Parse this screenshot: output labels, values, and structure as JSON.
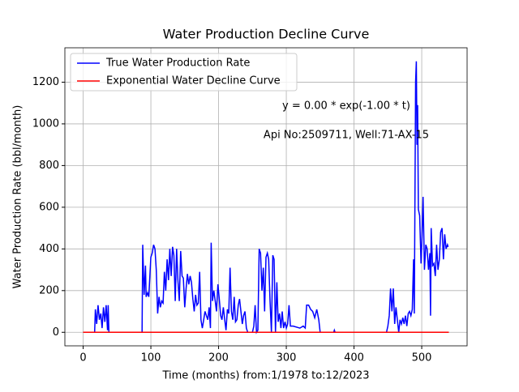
{
  "chart_data": {
    "type": "line",
    "title": "Water Production Decline Curve",
    "xlabel": "Time (months) from:1/1978 to:12/2023",
    "ylabel": "Water Production Rate (bbl/month)",
    "annotations": [
      "y = 0.00 * exp(-1.00 * t)",
      "Api No:2509711, Well:71-AX-15"
    ],
    "xlim": [
      -27,
      567
    ],
    "ylim": [
      -65,
      1365
    ],
    "xticks": [
      0,
      100,
      200,
      300,
      400,
      500
    ],
    "yticks": [
      0,
      200,
      400,
      600,
      800,
      1000,
      1200
    ],
    "grid": true,
    "legend": "upper left",
    "series": [
      {
        "name": "True Water Production Rate",
        "color": "#0000ff",
        "x": [
          0,
          15,
          17,
          18,
          20,
          22,
          24,
          26,
          28,
          30,
          32,
          34,
          36,
          37,
          38,
          87,
          88,
          90,
          92,
          93,
          95,
          97,
          100,
          102,
          104,
          106,
          108,
          110,
          112,
          114,
          116,
          118,
          120,
          122,
          124,
          126,
          128,
          130,
          132,
          134,
          136,
          138,
          140,
          142,
          144,
          146,
          148,
          150,
          152,
          154,
          156,
          158,
          160,
          162,
          164,
          166,
          168,
          170,
          172,
          174,
          176,
          178,
          180,
          182,
          184,
          186,
          188,
          189,
          191,
          193,
          195,
          197,
          199,
          201,
          203,
          205,
          207,
          209,
          211,
          213,
          215,
          217,
          219,
          221,
          223,
          225,
          227,
          229,
          231,
          233,
          235,
          237,
          239,
          241,
          243,
          250,
          252,
          254,
          256,
          258,
          260,
          262,
          264,
          266,
          268,
          270,
          272,
          274,
          276,
          278,
          280,
          282,
          284,
          286,
          288,
          290,
          292,
          294,
          296,
          298,
          300,
          302,
          304,
          306,
          310,
          320,
          325,
          328,
          330,
          333,
          336,
          339,
          342,
          345,
          348,
          350,
          370,
          371,
          372,
          448,
          450,
          452,
          454,
          456,
          458,
          460,
          462,
          464,
          466,
          468,
          470,
          472,
          474,
          476,
          478,
          480,
          482,
          484,
          486,
          488,
          489,
          491,
          492,
          493,
          494,
          495,
          497,
          499,
          500,
          502,
          504,
          506,
          508,
          510,
          512,
          513,
          514,
          516,
          518,
          520,
          522,
          524,
          526,
          528,
          530,
          532,
          534,
          536,
          538,
          539
        ],
        "values": [
          0,
          0,
          0,
          110,
          40,
          130,
          60,
          90,
          20,
          120,
          50,
          130,
          10,
          130,
          0,
          0,
          420,
          180,
          320,
          170,
          190,
          170,
          360,
          380,
          420,
          400,
          300,
          90,
          170,
          120,
          150,
          140,
          290,
          200,
          350,
          250,
          400,
          270,
          410,
          370,
          150,
          400,
          250,
          150,
          390,
          270,
          260,
          120,
          210,
          280,
          230,
          270,
          240,
          160,
          100,
          180,
          130,
          140,
          290,
          60,
          20,
          60,
          100,
          80,
          60,
          120,
          20,
          430,
          150,
          200,
          150,
          100,
          230,
          160,
          80,
          60,
          120,
          60,
          10,
          110,
          90,
          310,
          100,
          60,
          170,
          50,
          60,
          130,
          160,
          100,
          40,
          80,
          100,
          20,
          0,
          0,
          30,
          130,
          0,
          10,
          400,
          380,
          200,
          310,
          100,
          360,
          380,
          350,
          150,
          0,
          370,
          350,
          0,
          240,
          50,
          90,
          20,
          100,
          20,
          50,
          20,
          40,
          130,
          30,
          30,
          20,
          30,
          20,
          130,
          130,
          110,
          100,
          70,
          110,
          60,
          0,
          0,
          10,
          0,
          0,
          30,
          80,
          210,
          100,
          210,
          40,
          120,
          60,
          0,
          60,
          40,
          70,
          40,
          80,
          30,
          90,
          100,
          80,
          110,
          350,
          90,
          1200,
          1300,
          900,
          1090,
          590,
          560,
          330,
          420,
          650,
          300,
          420,
          400,
          300,
          380,
          80,
          500,
          320,
          330,
          270,
          420,
          300,
          350,
          480,
          500,
          350,
          470,
          400,
          420,
          410
        ]
      },
      {
        "name": "Exponential Water Decline Curve",
        "color": "#ff0000",
        "x": [
          0,
          540
        ],
        "values": [
          0,
          0
        ]
      }
    ]
  }
}
